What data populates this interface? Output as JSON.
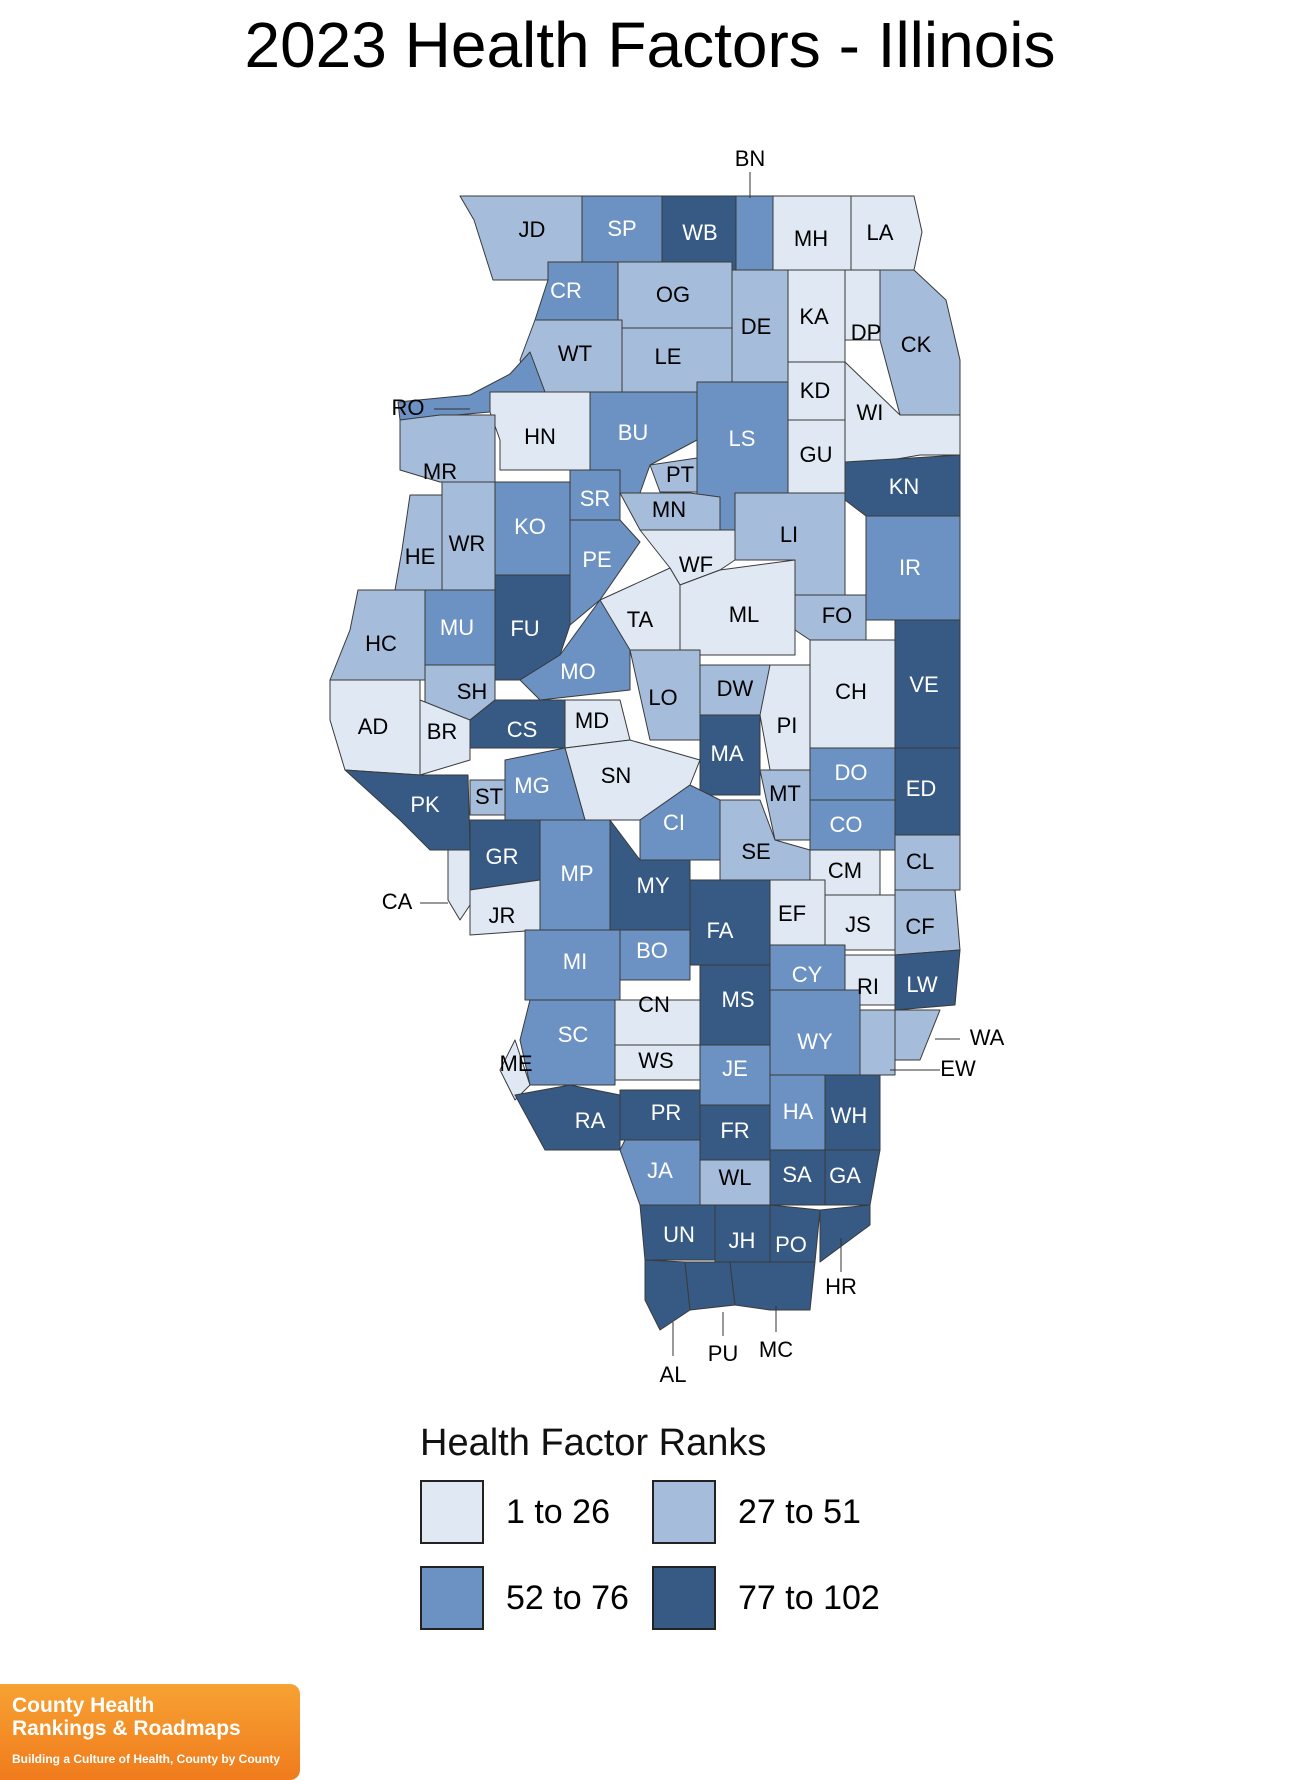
{
  "title": "2023 Health Factors - Illinois",
  "colors": {
    "q1": "#dfe8f3",
    "q2": "#a5bcda",
    "q3": "#6b92c3",
    "q4": "#365a84",
    "label_light": "#000000",
    "label_dark": "#ffffff"
  },
  "legend": {
    "title": "Health Factor Ranks",
    "items": [
      {
        "label": "1 to 26",
        "tier": "q1"
      },
      {
        "label": "27 to 51",
        "tier": "q2"
      },
      {
        "label": "52 to 76",
        "tier": "q3"
      },
      {
        "label": "77 to 102",
        "tier": "q4"
      }
    ]
  },
  "counties": [
    {
      "abbr": "JD",
      "tier": "q2"
    },
    {
      "abbr": "SP",
      "tier": "q3"
    },
    {
      "abbr": "WB",
      "tier": "q4"
    },
    {
      "abbr": "BN",
      "tier": "q3"
    },
    {
      "abbr": "MH",
      "tier": "q1"
    },
    {
      "abbr": "LA",
      "tier": "q1"
    },
    {
      "abbr": "CR",
      "tier": "q3"
    },
    {
      "abbr": "OG",
      "tier": "q2"
    },
    {
      "abbr": "DE",
      "tier": "q2"
    },
    {
      "abbr": "KA",
      "tier": "q1"
    },
    {
      "abbr": "DP",
      "tier": "q1"
    },
    {
      "abbr": "CK",
      "tier": "q2"
    },
    {
      "abbr": "WT",
      "tier": "q2"
    },
    {
      "abbr": "LE",
      "tier": "q2"
    },
    {
      "abbr": "KD",
      "tier": "q1"
    },
    {
      "abbr": "RO",
      "tier": "q3"
    },
    {
      "abbr": "HN",
      "tier": "q1"
    },
    {
      "abbr": "BU",
      "tier": "q3"
    },
    {
      "abbr": "LS",
      "tier": "q3"
    },
    {
      "abbr": "WI",
      "tier": "q1"
    },
    {
      "abbr": "GU",
      "tier": "q1"
    },
    {
      "abbr": "MR",
      "tier": "q2"
    },
    {
      "abbr": "PT",
      "tier": "q2"
    },
    {
      "abbr": "KN",
      "tier": "q4"
    },
    {
      "abbr": "SR",
      "tier": "q3"
    },
    {
      "abbr": "MN",
      "tier": "q2"
    },
    {
      "abbr": "KO",
      "tier": "q3"
    },
    {
      "abbr": "LI",
      "tier": "q2"
    },
    {
      "abbr": "HE",
      "tier": "q2"
    },
    {
      "abbr": "WR",
      "tier": "q2"
    },
    {
      "abbr": "PE",
      "tier": "q3"
    },
    {
      "abbr": "WF",
      "tier": "q1"
    },
    {
      "abbr": "IR",
      "tier": "q3"
    },
    {
      "abbr": "FU",
      "tier": "q4"
    },
    {
      "abbr": "TA",
      "tier": "q1"
    },
    {
      "abbr": "ML",
      "tier": "q1"
    },
    {
      "abbr": "FO",
      "tier": "q2"
    },
    {
      "abbr": "HC",
      "tier": "q2"
    },
    {
      "abbr": "MU",
      "tier": "q3"
    },
    {
      "abbr": "MO",
      "tier": "q3"
    },
    {
      "abbr": "VE",
      "tier": "q4"
    },
    {
      "abbr": "CH",
      "tier": "q1"
    },
    {
      "abbr": "SH",
      "tier": "q2"
    },
    {
      "abbr": "LO",
      "tier": "q2"
    },
    {
      "abbr": "DW",
      "tier": "q2"
    },
    {
      "abbr": "AD",
      "tier": "q1"
    },
    {
      "abbr": "BR",
      "tier": "q1"
    },
    {
      "abbr": "CS",
      "tier": "q4"
    },
    {
      "abbr": "MD",
      "tier": "q1"
    },
    {
      "abbr": "PI",
      "tier": "q1"
    },
    {
      "abbr": "MA",
      "tier": "q4"
    },
    {
      "abbr": "ED",
      "tier": "q4"
    },
    {
      "abbr": "DO",
      "tier": "q3"
    },
    {
      "abbr": "SN",
      "tier": "q1"
    },
    {
      "abbr": "PK",
      "tier": "q4"
    },
    {
      "abbr": "ST",
      "tier": "q2"
    },
    {
      "abbr": "MG",
      "tier": "q3"
    },
    {
      "abbr": "MT",
      "tier": "q2"
    },
    {
      "abbr": "CI",
      "tier": "q3"
    },
    {
      "abbr": "CO",
      "tier": "q3"
    },
    {
      "abbr": "GR",
      "tier": "q4"
    },
    {
      "abbr": "SE",
      "tier": "q2"
    },
    {
      "abbr": "CL",
      "tier": "q2"
    },
    {
      "abbr": "MP",
      "tier": "q3"
    },
    {
      "abbr": "MY",
      "tier": "q4"
    },
    {
      "abbr": "CM",
      "tier": "q1"
    },
    {
      "abbr": "CA",
      "tier": "q1"
    },
    {
      "abbr": "JR",
      "tier": "q1"
    },
    {
      "abbr": "EF",
      "tier": "q1"
    },
    {
      "abbr": "JS",
      "tier": "q1"
    },
    {
      "abbr": "CF",
      "tier": "q2"
    },
    {
      "abbr": "FA",
      "tier": "q4"
    },
    {
      "abbr": "BO",
      "tier": "q3"
    },
    {
      "abbr": "MI",
      "tier": "q3"
    },
    {
      "abbr": "CY",
      "tier": "q3"
    },
    {
      "abbr": "RI",
      "tier": "q1"
    },
    {
      "abbr": "LW",
      "tier": "q4"
    },
    {
      "abbr": "CN",
      "tier": "q1"
    },
    {
      "abbr": "MS",
      "tier": "q4"
    },
    {
      "abbr": "SC",
      "tier": "q3"
    },
    {
      "abbr": "WY",
      "tier": "q3"
    },
    {
      "abbr": "WA",
      "tier": "q2"
    },
    {
      "abbr": "EW",
      "tier": "q2"
    },
    {
      "abbr": "WS",
      "tier": "q1"
    },
    {
      "abbr": "JE",
      "tier": "q3"
    },
    {
      "abbr": "ME",
      "tier": "q1"
    },
    {
      "abbr": "RA",
      "tier": "q4"
    },
    {
      "abbr": "PR",
      "tier": "q4"
    },
    {
      "abbr": "FR",
      "tier": "q4"
    },
    {
      "abbr": "HA",
      "tier": "q3"
    },
    {
      "abbr": "WH",
      "tier": "q4"
    },
    {
      "abbr": "JA",
      "tier": "q3"
    },
    {
      "abbr": "WL",
      "tier": "q2"
    },
    {
      "abbr": "SA",
      "tier": "q4"
    },
    {
      "abbr": "GA",
      "tier": "q4"
    },
    {
      "abbr": "UN",
      "tier": "q4"
    },
    {
      "abbr": "JH",
      "tier": "q4"
    },
    {
      "abbr": "PO",
      "tier": "q4"
    },
    {
      "abbr": "HR",
      "tier": "q4"
    },
    {
      "abbr": "AL",
      "tier": "q4"
    },
    {
      "abbr": "PU",
      "tier": "q4"
    },
    {
      "abbr": "MC",
      "tier": "q4"
    }
  ],
  "brand": {
    "line1": "County Health",
    "line2": "Rankings & Roadmaps",
    "tagline": "Building a Culture of Health, County by County"
  }
}
